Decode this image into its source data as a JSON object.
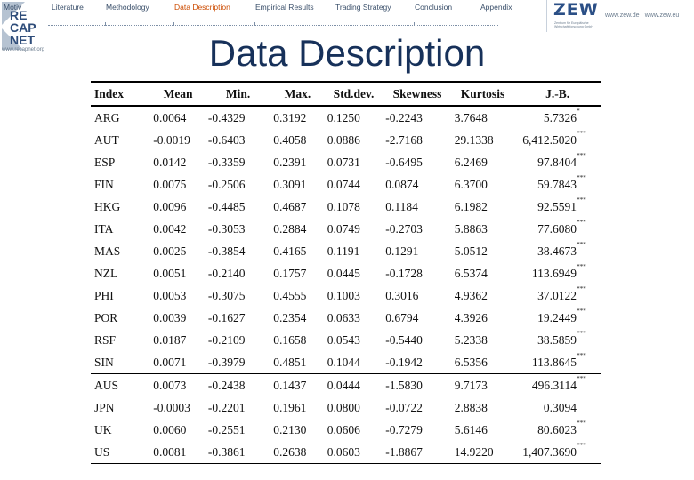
{
  "nav": {
    "items": [
      "Motiv",
      "Literature",
      "Methodology",
      "Data Description",
      "Empirical Results",
      "Trading Strategy",
      "Conclusion",
      "Appendix"
    ],
    "active_index": 3,
    "active_color": "#cc4b00"
  },
  "logo": {
    "text_lines": [
      "RE",
      "CAP",
      "NET"
    ],
    "url": "www.recapnet.org"
  },
  "zew": {
    "word": "ZEW",
    "subtitle": "Zentrum für Europäische Wirtschaftsforschung GmbH",
    "url": "www.zew.de · www.zew.eu"
  },
  "title": "Data Description",
  "table": {
    "headers": [
      "Index",
      "Mean",
      "Min.",
      "Max.",
      "Std.dev.",
      "Skewness",
      "Kurtosis",
      "J.-B."
    ],
    "rows": [
      {
        "cells": [
          "ARG",
          "0.0064",
          "-0.4329",
          "0.3192",
          "0.1250",
          "-0.2243",
          "3.7648",
          "5.7326"
        ],
        "stars": "*"
      },
      {
        "cells": [
          "AUT",
          "-0.0019",
          "-0.6403",
          "0.4058",
          "0.0886",
          "-2.7168",
          "29.1338",
          "6,412.5020"
        ],
        "stars": "***"
      },
      {
        "cells": [
          "ESP",
          "0.0142",
          "-0.3359",
          "0.2391",
          "0.0731",
          "-0.6495",
          "6.2469",
          "97.8404"
        ],
        "stars": "***"
      },
      {
        "cells": [
          "FIN",
          "0.0075",
          "-0.2506",
          "0.3091",
          "0.0744",
          "0.0874",
          "6.3700",
          "59.7843"
        ],
        "stars": "***"
      },
      {
        "cells": [
          "HKG",
          "0.0096",
          "-0.4485",
          "0.4687",
          "0.1078",
          "0.1184",
          "6.1982",
          "92.5591"
        ],
        "stars": "***"
      },
      {
        "cells": [
          "ITA",
          "0.0042",
          "-0.3053",
          "0.2884",
          "0.0749",
          "-0.2703",
          "5.8863",
          "77.6080"
        ],
        "stars": "***"
      },
      {
        "cells": [
          "MAS",
          "0.0025",
          "-0.3854",
          "0.4165",
          "0.1191",
          "0.1291",
          "5.0512",
          "38.4673"
        ],
        "stars": "***"
      },
      {
        "cells": [
          "NZL",
          "0.0051",
          "-0.2140",
          "0.1757",
          "0.0445",
          "-0.1728",
          "6.5374",
          "113.6949"
        ],
        "stars": "***"
      },
      {
        "cells": [
          "PHI",
          "0.0053",
          "-0.3075",
          "0.4555",
          "0.1003",
          "0.3016",
          "4.9362",
          "37.0122"
        ],
        "stars": "***"
      },
      {
        "cells": [
          "POR",
          "0.0039",
          "-0.1627",
          "0.2354",
          "0.0633",
          "0.6794",
          "4.3926",
          "19.2449"
        ],
        "stars": "***"
      },
      {
        "cells": [
          "RSF",
          "0.0187",
          "-0.2109",
          "0.1658",
          "0.0543",
          "-0.5440",
          "5.2338",
          "38.5859"
        ],
        "stars": "***"
      },
      {
        "cells": [
          "SIN",
          "0.0071",
          "-0.3979",
          "0.4851",
          "0.1044",
          "-0.1942",
          "6.5356",
          "113.8645"
        ],
        "stars": "***"
      },
      {
        "cells": [
          "AUS",
          "0.0073",
          "-0.2438",
          "0.1437",
          "0.0444",
          "-1.5830",
          "9.7173",
          "496.3114"
        ],
        "stars": "***"
      },
      {
        "cells": [
          "JPN",
          "-0.0003",
          "-0.2201",
          "0.1961",
          "0.0800",
          "-0.0722",
          "2.8838",
          "0.3094"
        ],
        "stars": ""
      },
      {
        "cells": [
          "UK",
          "0.0060",
          "-0.2551",
          "0.2130",
          "0.0606",
          "-0.7279",
          "5.6146",
          "80.6023"
        ],
        "stars": "***"
      },
      {
        "cells": [
          "US",
          "0.0081",
          "-0.3861",
          "0.2638",
          "0.0603",
          "-1.8867",
          "14.9220",
          "1,407.3690"
        ],
        "stars": "***"
      }
    ]
  }
}
